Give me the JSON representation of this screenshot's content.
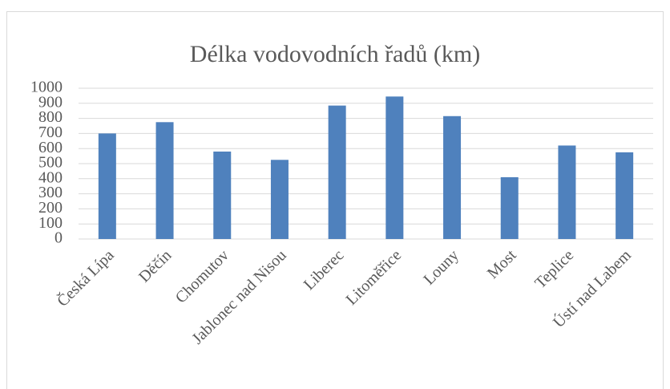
{
  "chart_data": {
    "type": "bar",
    "title": "Délka vodovodních řadů (km)",
    "categories": [
      "Česká Lípa",
      "Děčín",
      "Chomutov",
      "Jablonec nad Nisou",
      "Liberec",
      "Litoměřice",
      "Louny",
      "Most",
      "Teplice",
      "Ústí nad Labem"
    ],
    "values": [
      700,
      775,
      580,
      525,
      885,
      945,
      815,
      410,
      620,
      575
    ],
    "color": "#4f81bd",
    "ylim": [
      0,
      1000
    ],
    "yticks": [
      0,
      100,
      200,
      300,
      400,
      500,
      600,
      700,
      800,
      900,
      1000
    ],
    "grid": true
  }
}
